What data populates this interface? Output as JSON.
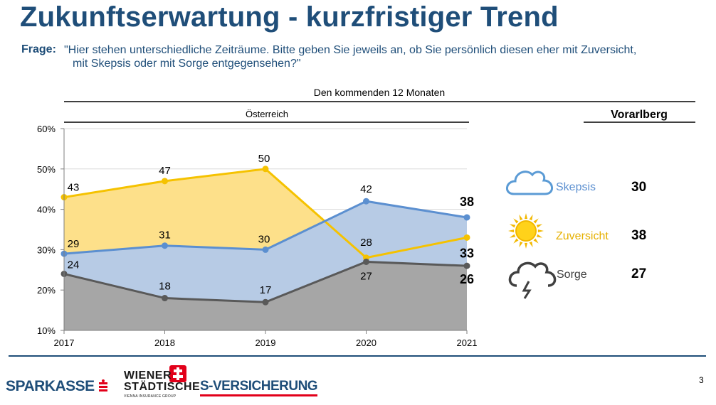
{
  "header": {
    "title": "Zukunftserwartung - kurzfristiger Trend",
    "frage_label": "Frage:",
    "frage_line1": "\"Hier stehen unterschiedliche Zeiträume. Bitte geben Sie jeweils an, ob Sie persönlich diesen eher mit Zuversicht,",
    "frage_line2": "mit Skepsis oder mit Sorge entgegensehen?\""
  },
  "chart_data": {
    "type": "area",
    "title": "Den kommenden 12 Monaten",
    "subtitle": "Österreich",
    "x": [
      "2017",
      "2018",
      "2019",
      "2020",
      "2021"
    ],
    "ylim": [
      10,
      60
    ],
    "yticks": [
      "10%",
      "20%",
      "30%",
      "40%",
      "50%",
      "60%"
    ],
    "grid": true,
    "series": [
      {
        "name": "Zuversicht",
        "values": [
          43,
          47,
          50,
          28,
          33
        ],
        "color": "#f5c200",
        "fill": "#fde08a"
      },
      {
        "name": "Skepsis",
        "values": [
          29,
          31,
          30,
          42,
          38
        ],
        "color": "#5b8fd0",
        "fill": "#b7cbe5"
      },
      {
        "name": "Sorge",
        "values": [
          24,
          18,
          17,
          27,
          26
        ],
        "color": "#595959",
        "fill": "#a6a6a6"
      }
    ],
    "data_labels": [
      [
        "43",
        "47",
        "50",
        "28",
        "33"
      ],
      [
        "29",
        "31",
        "30",
        "42",
        "38"
      ],
      [
        "24",
        "18",
        "17",
        "27",
        "26"
      ]
    ]
  },
  "vorarlberg": {
    "heading": "Vorarlberg",
    "items": [
      {
        "label": "Skepsis",
        "value": "30",
        "icon": "cloud-icon",
        "color": "#5b8fd0"
      },
      {
        "label": "Zuversicht",
        "value": "38",
        "icon": "sun-icon",
        "color": "#e6b000"
      },
      {
        "label": "Sorge",
        "value": "27",
        "icon": "storm-cloud-icon",
        "color": "#404040"
      }
    ]
  },
  "footer": {
    "logo1": "SPARKASSE",
    "logo2_line1": "WIENER",
    "logo2_line2": "STÄDTISCHE",
    "logo2_line3": "VIENNA INSURANCE GROUP",
    "logo3": "S-VERSICHERUNG",
    "page_number": "3",
    "brand_red": "#e2001a",
    "brand_blue": "#1f4e79"
  }
}
